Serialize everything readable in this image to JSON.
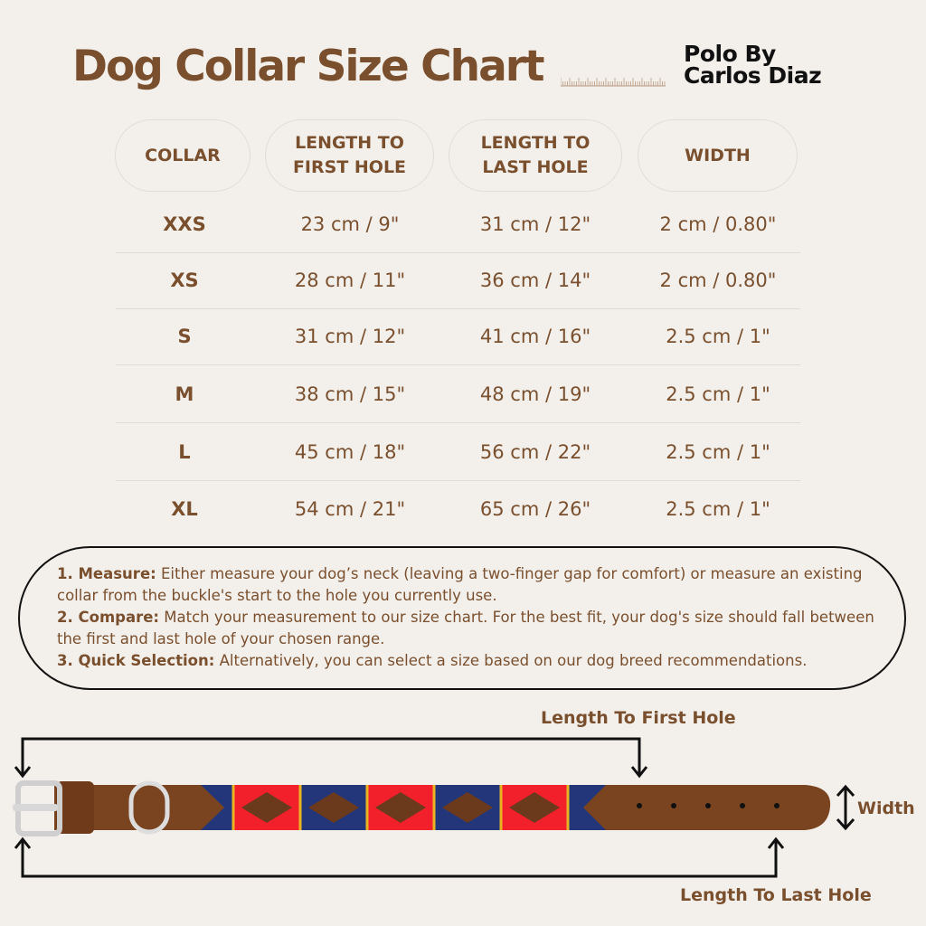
{
  "title": "Dog Collar Size Chart",
  "brand": {
    "line1": "Polo By",
    "line2": "Carlos Diaz"
  },
  "colors": {
    "accent": "#7a4f2e",
    "background": "#f3f0eb",
    "navy": "#23367a",
    "red": "#f2202b",
    "gold": "#e8b422",
    "leather": "#7a4420"
  },
  "table": {
    "headers": [
      [
        "COLLAR"
      ],
      [
        "LENGTH TO",
        "FIRST HOLE"
      ],
      [
        "LENGTH TO",
        "LAST HOLE"
      ],
      [
        "WIDTH"
      ]
    ],
    "rows": [
      [
        "XXS",
        "23 cm / 9\"",
        "31 cm / 12\"",
        "2 cm / 0.80\""
      ],
      [
        "XS",
        "28 cm / 11\"",
        "36 cm / 14\"",
        "2 cm / 0.80\""
      ],
      [
        "S",
        "31 cm / 12\"",
        "41 cm / 16\"",
        "2.5 cm / 1\""
      ],
      [
        "M",
        "38 cm / 15\"",
        "48 cm / 19\"",
        "2.5 cm / 1\""
      ],
      [
        "L",
        "45 cm / 18\"",
        "56 cm / 22\"",
        "2.5 cm / 1\""
      ],
      [
        "XL",
        "54 cm / 21\"",
        "65 cm / 26\"",
        "2.5 cm / 1\""
      ]
    ]
  },
  "instructions": [
    {
      "label": "1. Measure:",
      "text": " Either measure your dog’s neck (leaving a two-finger gap for comfort) or measure an existing collar from the buckle's start to the hole you currently use."
    },
    {
      "label": "2. Compare:",
      "text": " Match your measurement to our size chart. For the best fit, your dog's size should fall between the first and last hole of your chosen range."
    },
    {
      "label": "3. Quick Selection:",
      "text": " Alternatively, you can select a size based on our dog breed recommendations."
    }
  ],
  "diagram": {
    "first_hole_label": "Length To First Hole",
    "last_hole_label": "Length To Last Hole",
    "width_label": "Width"
  }
}
